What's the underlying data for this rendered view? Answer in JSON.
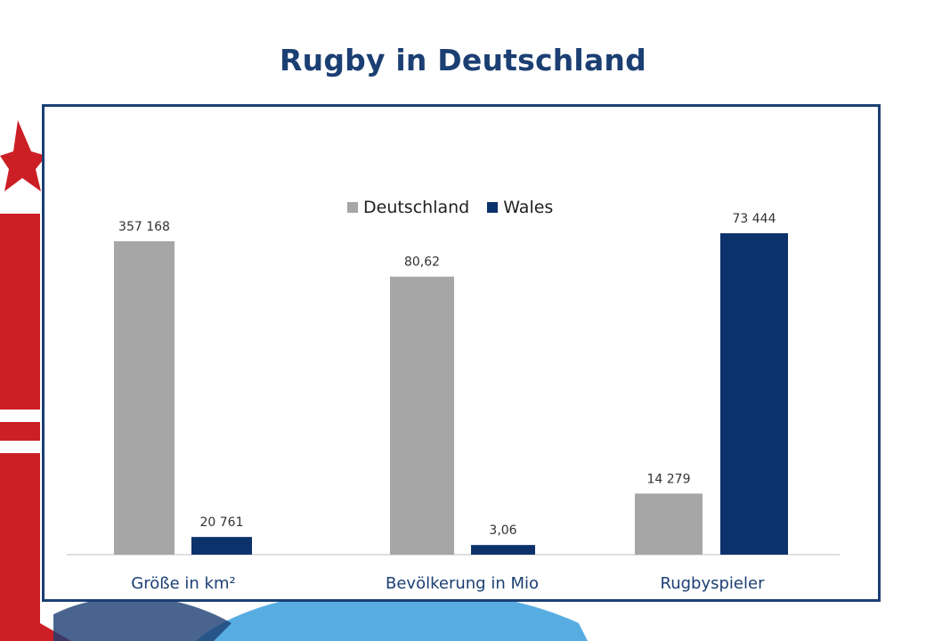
{
  "slide": {
    "title": "Rugby in Deutschland"
  },
  "colors": {
    "title": "#1b3f73",
    "deutschland": "#a6a6a6",
    "wales": "#0c326b",
    "decor_red": "#cc1f25",
    "decor_blue": "#3a9fdd"
  },
  "chart_data": {
    "type": "bar",
    "title": "",
    "legend_position": "top",
    "categories": [
      "Größe in km²",
      "Bevölkerung in Mio",
      "Rugbyspieler"
    ],
    "series": [
      {
        "name": "Deutschland",
        "values": [
          357168,
          80.62,
          14279
        ],
        "labels": [
          "357 168",
          "80,62",
          "14 279"
        ]
      },
      {
        "name": "Wales",
        "values": [
          20761,
          3.06,
          73444
        ],
        "labels": [
          "20 761",
          "3,06",
          "73 444"
        ]
      }
    ],
    "note_on_scale": "each category pair is normalized to its own maximum"
  }
}
